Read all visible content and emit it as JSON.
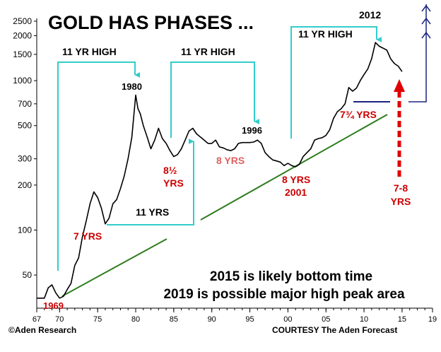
{
  "chart_data": {
    "type": "line",
    "title": "GOLD HAS PHASES ...",
    "xlabel": "",
    "ylabel": "",
    "y_scale": "log",
    "ylim": [
      30,
      2500
    ],
    "xlim": [
      1967,
      2019
    ],
    "y_ticks": [
      {
        "value": 2500,
        "label": "2500"
      },
      {
        "value": 2000,
        "label": "2000"
      },
      {
        "value": 1500,
        "label": "1500"
      },
      {
        "value": 1000,
        "label": "1000"
      },
      {
        "value": 700,
        "label": "700"
      },
      {
        "value": 500,
        "label": "500"
      },
      {
        "value": 300,
        "label": "300"
      },
      {
        "value": 200,
        "label": "200"
      },
      {
        "value": 100,
        "label": "100"
      },
      {
        "value": 50,
        "label": "50"
      }
    ],
    "x_ticks": [
      {
        "value": 1967,
        "label": "67"
      },
      {
        "value": 1970,
        "label": "70"
      },
      {
        "value": 1975,
        "label": "75"
      },
      {
        "value": 1980,
        "label": "80"
      },
      {
        "value": 1985,
        "label": "85"
      },
      {
        "value": 1990,
        "label": "90"
      },
      {
        "value": 1995,
        "label": "95"
      },
      {
        "value": 2000,
        "label": "00"
      },
      {
        "value": 2005,
        "label": "05"
      },
      {
        "value": 2010,
        "label": "10"
      },
      {
        "value": 2015,
        "label": "15"
      },
      {
        "value": 2019,
        "label": "19"
      }
    ],
    "series": [
      {
        "name": "Gold price",
        "color": "#000000",
        "x": [
          1967,
          1968,
          1968.5,
          1969,
          1969.5,
          1970,
          1970.5,
          1971,
          1971.5,
          1972,
          1972.5,
          1973,
          1973.5,
          1974,
          1974.5,
          1975,
          1975.5,
          1976,
          1976.5,
          1977,
          1977.5,
          1978,
          1978.5,
          1979,
          1979.5,
          1980,
          1980.3,
          1980.6,
          1981,
          1981.5,
          1982,
          1982.5,
          1983,
          1983.5,
          1984,
          1984.5,
          1985,
          1985.5,
          1986,
          1986.5,
          1987,
          1987.5,
          1988,
          1988.5,
          1989,
          1989.5,
          1990,
          1990.5,
          1991,
          1991.5,
          1992,
          1992.5,
          1993,
          1993.5,
          1994,
          1994.5,
          1995,
          1995.5,
          1996,
          1996.5,
          1997,
          1997.5,
          1998,
          1998.5,
          1999,
          1999.5,
          2000,
          2000.5,
          2001,
          2001.5,
          2002,
          2002.5,
          2003,
          2003.5,
          2004,
          2004.5,
          2005,
          2005.5,
          2006,
          2006.5,
          2007,
          2007.5,
          2008,
          2008.5,
          2009,
          2009.5,
          2010,
          2010.5,
          2011,
          2011.5,
          2012,
          2012.5,
          2013,
          2013.5,
          2014,
          2014.5,
          2015
        ],
        "values": [
          35,
          35,
          41,
          43,
          38,
          35,
          36,
          40,
          44,
          58,
          65,
          90,
          115,
          150,
          180,
          165,
          140,
          110,
          120,
          150,
          160,
          190,
          230,
          300,
          420,
          800,
          650,
          600,
          500,
          420,
          350,
          400,
          480,
          410,
          380,
          340,
          310,
          320,
          350,
          400,
          460,
          480,
          440,
          420,
          400,
          380,
          380,
          400,
          360,
          355,
          345,
          340,
          350,
          380,
          385,
          385,
          385,
          388,
          400,
          380,
          330,
          310,
          295,
          290,
          285,
          270,
          280,
          270,
          265,
          275,
          310,
          330,
          350,
          400,
          410,
          415,
          430,
          470,
          560,
          620,
          650,
          700,
          900,
          850,
          890,
          1000,
          1100,
          1200,
          1400,
          1800,
          1700,
          1650,
          1600,
          1400,
          1300,
          1250,
          1150
        ]
      }
    ],
    "annotations": [
      {
        "text": "11 YR HIGH",
        "color": "#000000"
      },
      {
        "text": "11 YR HIGH",
        "color": "#000000"
      },
      {
        "text": "11 YR HIGH",
        "color": "#000000"
      },
      {
        "text": "1980",
        "color": "#000000"
      },
      {
        "text": "1996",
        "color": "#000000"
      },
      {
        "text": "2012",
        "color": "#000000"
      },
      {
        "text": "11 YRS",
        "color": "#000000"
      },
      {
        "text": "7 YRS",
        "color": "#cc0000"
      },
      {
        "text": "8½",
        "color": "#cc0000"
      },
      {
        "text": "YRS",
        "color": "#cc0000"
      },
      {
        "text": "8 YRS",
        "color": "#e06060"
      },
      {
        "text": "8 YRS",
        "color": "#cc0000"
      },
      {
        "text": "2001",
        "color": "#cc0000"
      },
      {
        "text": "7¾ YRS",
        "color": "#cc0000"
      },
      {
        "text": "7-8",
        "color": "#cc0000"
      },
      {
        "text": "YRS",
        "color": "#cc0000"
      },
      {
        "text": "1969",
        "color": "#cc0000"
      }
    ],
    "notes": [
      "2015 is likely bottom time",
      "2019 is possible major high peak area"
    ],
    "footer_left": "©Aden Research",
    "footer_right": "COURTESY The Aden Forecast"
  },
  "colors": {
    "price_line": "#000000",
    "trend_line": "#2e7d1e",
    "phase_bracket": "#33cccc",
    "projection": "#1a237e",
    "red_label": "#cc0000",
    "salmon_label": "#e06060"
  }
}
